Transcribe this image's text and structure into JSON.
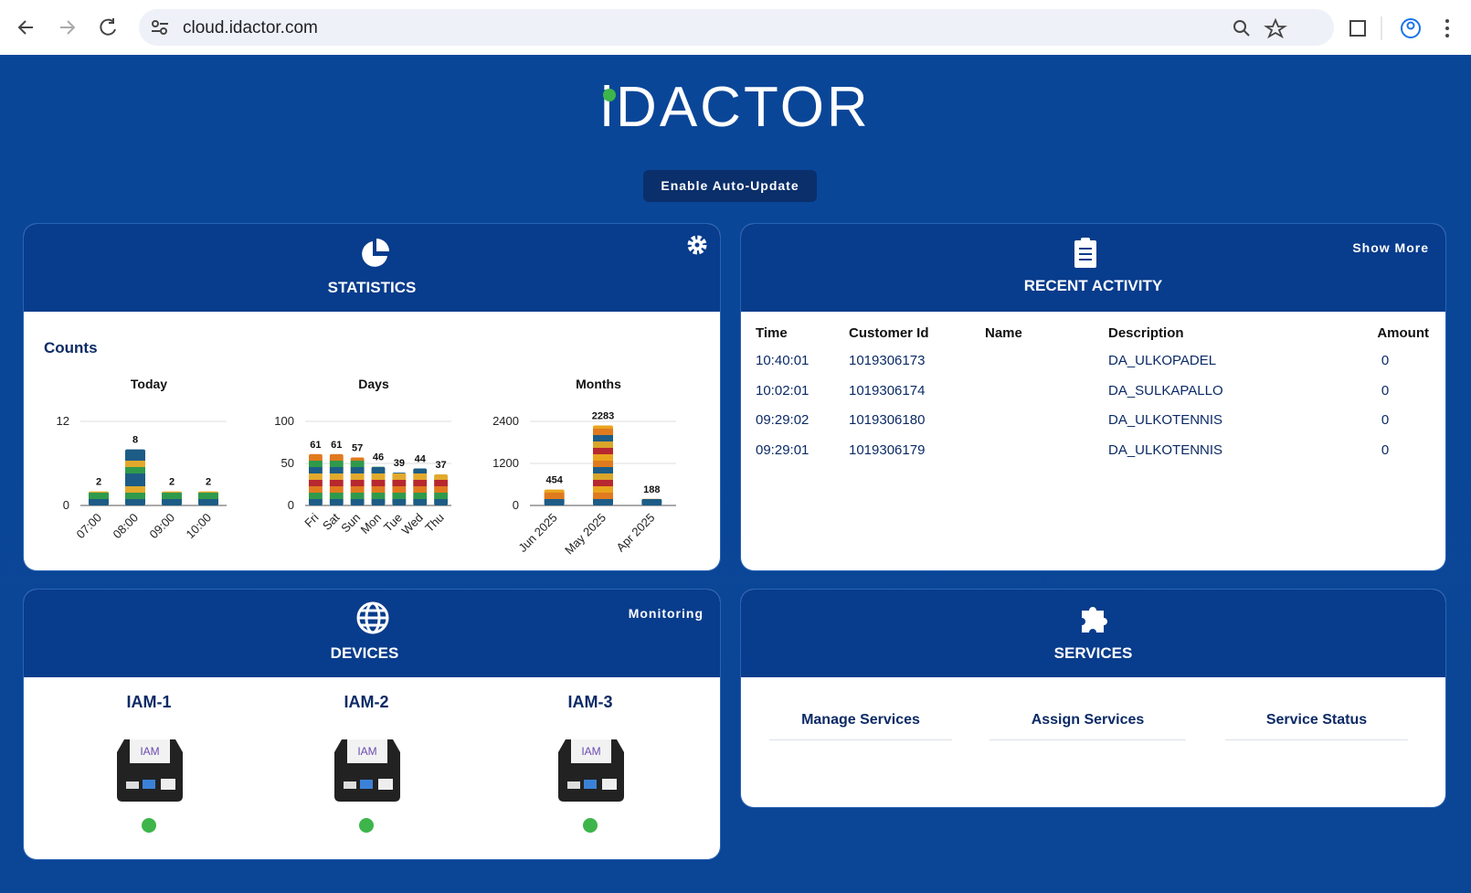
{
  "browser": {
    "url": "cloud.idactor.com"
  },
  "header": {
    "logo": "iDACTOR",
    "button": "Enable Auto-Update"
  },
  "statistics": {
    "title": "STATISTICS",
    "subtitle": "Counts"
  },
  "chart_data": [
    {
      "type": "bar",
      "title": "Today",
      "categories": [
        "07:00",
        "08:00",
        "09:00",
        "10:00"
      ],
      "values": [
        2,
        8,
        2,
        2
      ],
      "ylim": [
        0,
        12
      ],
      "yticks": [
        0,
        12
      ],
      "grid": true,
      "colors": [
        "#1d5c86",
        "#e2a92c",
        "#2f9a4c",
        "#1d5c86"
      ]
    },
    {
      "type": "bar",
      "title": "Days",
      "categories": [
        "Fri",
        "Sat",
        "Sun",
        "Mon",
        "Tue",
        "Wed",
        "Thu"
      ],
      "values": [
        61,
        61,
        57,
        46,
        39,
        44,
        37
      ],
      "ylim": [
        0,
        100
      ],
      "yticks": [
        0,
        50,
        100
      ],
      "grid": true,
      "colors": [
        "#e2a92c",
        "#b8282f",
        "#e07a1e",
        "#2f9a4c",
        "#1d5c86"
      ]
    },
    {
      "type": "bar",
      "title": "Months",
      "categories": [
        "Jun 2025",
        "May 2025",
        "Apr 2025"
      ],
      "values": [
        454,
        2283,
        188
      ],
      "ylim": [
        0,
        2400
      ],
      "yticks": [
        0,
        1200,
        2400
      ],
      "grid": true,
      "colors": [
        "#d9a52a",
        "#b8282f",
        "#e9a51e",
        "#e07a1e",
        "#1d5c86"
      ]
    }
  ],
  "activity": {
    "title": "RECENT ACTIVITY",
    "link": "Show More",
    "columns": [
      "Time",
      "Customer Id",
      "Name",
      "Description",
      "Amount"
    ],
    "rows": [
      [
        "10:40:01",
        "1019306173",
        "",
        "DA_ULKOPADEL",
        0
      ],
      [
        "10:02:01",
        "1019306174",
        "",
        "DA_SULKAPALLO",
        0
      ],
      [
        "09:29:02",
        "1019306180",
        "",
        "DA_ULKOTENNIS",
        0
      ],
      [
        "09:29:01",
        "1019306179",
        "",
        "DA_ULKOTENNIS",
        0
      ]
    ]
  },
  "devices": {
    "title": "DEVICES",
    "link": "Monitoring",
    "device_label": "IAM",
    "items": [
      "IAM-1",
      "IAM-2",
      "IAM-3"
    ]
  },
  "services": {
    "title": "SERVICES",
    "items": [
      "Manage Services",
      "Assign Services",
      "Service Status"
    ]
  }
}
